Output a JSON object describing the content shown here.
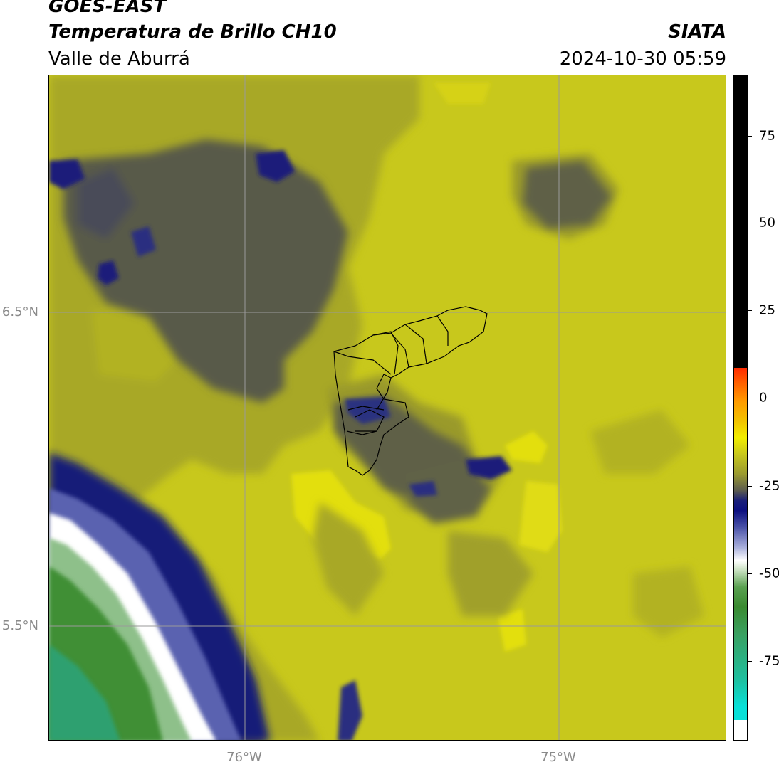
{
  "header": {
    "satellite": "GOES-EAST",
    "product": "Temperatura de Brillo CH10",
    "region": "Valle de Aburrá",
    "agency": "SIATA",
    "datetime": "2024-10-30 05:59"
  },
  "axes": {
    "lat_labels": [
      "6.5°N",
      "5.5°N"
    ],
    "lon_labels": [
      "76°W",
      "75°W"
    ]
  },
  "colorbar": {
    "ticks": [
      "75",
      "50",
      "25",
      "0",
      "-25",
      "-50",
      "-75"
    ],
    "colors": {
      "top_black": "#000000",
      "red": "#ff2a00",
      "orange": "#ff9a00",
      "yellow": "#f2ee00",
      "olive": "#7a7a2e",
      "navy": "#0d1080",
      "white": "#ffffff",
      "green": "#3a8a30",
      "cyan": "#08e0d8"
    }
  },
  "map": {
    "background": "#c8c81c",
    "grid_color": "#9a9a9a",
    "basin_outline": "#000000"
  }
}
